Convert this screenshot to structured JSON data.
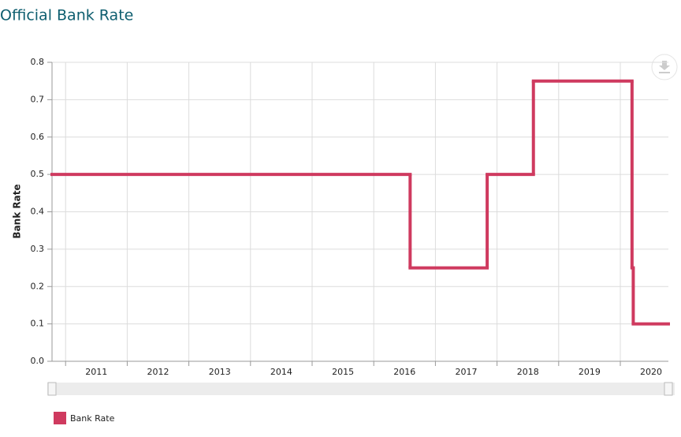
{
  "chart_data": {
    "type": "line",
    "title": "Official Bank Rate",
    "y_label": "Bank Rate",
    "step": "after",
    "x": [
      2010.78,
      2016.59,
      2017.84,
      2018.59,
      2020.19,
      2020.21
    ],
    "series": [
      {
        "name": "Bank Rate",
        "color": "#cf3a5f",
        "values": [
          0.5,
          0.25,
          0.5,
          0.75,
          0.25,
          0.1
        ]
      }
    ],
    "xlim": [
      2010.78,
      2020.78
    ],
    "xticks": [
      2011,
      2012,
      2013,
      2014,
      2015,
      2016,
      2017,
      2018,
      2019,
      2020
    ],
    "ylim": [
      0,
      0.8
    ],
    "yticks": [
      {
        "value": 0,
        "label": "0.0"
      },
      0.1,
      0.2,
      0.3,
      0.4,
      0.5,
      0.6,
      0.7,
      0.8
    ],
    "grid": true,
    "legend": "bottom-left"
  }
}
